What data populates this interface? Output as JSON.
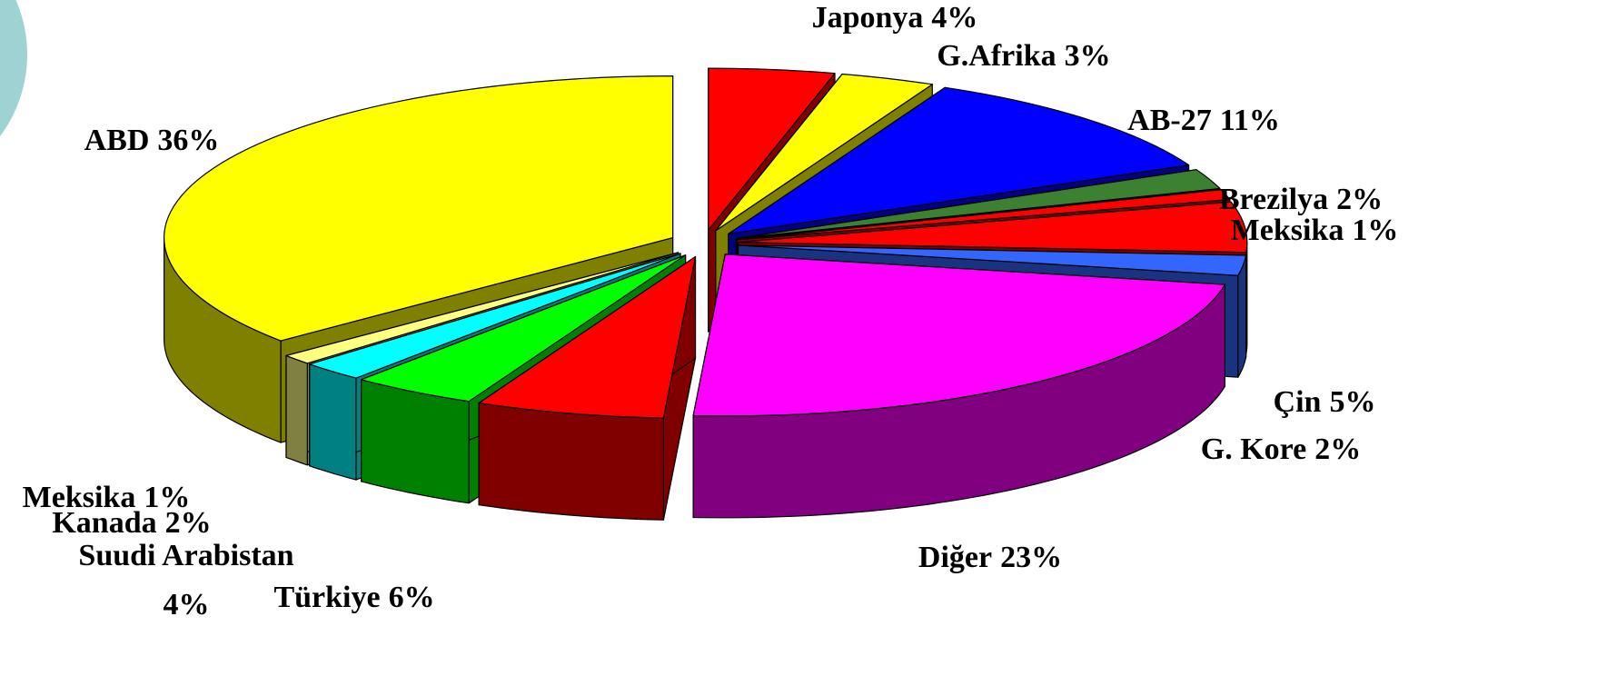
{
  "chart_data": {
    "type": "pie3d",
    "categories": [
      "Japonya",
      "G.Afrika",
      "AB-27",
      "Brezilya",
      "Meksika",
      "Çin",
      "G. Kore",
      "Diğer",
      "Türkiye",
      "Suudi Arabistan",
      "Kanada",
      "Meksika",
      "ABD"
    ],
    "values": [
      4,
      3,
      11,
      2,
      1,
      5,
      2,
      23,
      6,
      4,
      2,
      1,
      36
    ],
    "value_labels": [
      "4%",
      "3%",
      "11%",
      "2%",
      "1%",
      "5%",
      "2%",
      "23%",
      "6%",
      "4%",
      "2%",
      "1%",
      "36%"
    ],
    "colors": [
      "#ff0000",
      "#ffff00",
      "#0000ff",
      "#3c8032",
      "#ff0000",
      "#ff0000",
      "#3366ff",
      "#ff00ff",
      "#ff0000",
      "#00ff00",
      "#00ffff",
      "#ffff80",
      "#ffff00"
    ]
  }
}
